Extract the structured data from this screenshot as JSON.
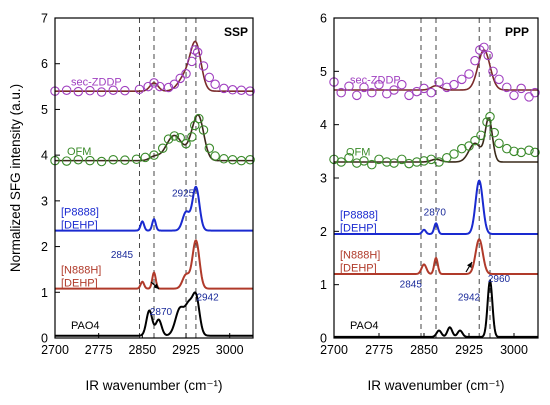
{
  "chart_data": [
    {
      "type": "line",
      "panel_label": "SSP",
      "xlabel": "IR wavenumber (cm⁻¹)",
      "ylabel": "Normalized SFG intensity (a.u.)",
      "xlim": [
        2700,
        3040
      ],
      "ylim": [
        0,
        7
      ],
      "xticks": [
        2700,
        2775,
        2850,
        2925,
        3000
      ],
      "yticks": [
        0,
        1,
        2,
        3,
        4,
        5,
        6,
        7
      ],
      "dashed_lines": [
        2845,
        2870,
        2925,
        2942
      ],
      "series": [
        {
          "name": "sec-ZDDP",
          "color": "#a040c0",
          "fit_color": "#7a2a2a",
          "baseline": 5.4,
          "peaks": [
            [
              2870,
              0.18,
              7
            ],
            [
              2925,
              0.35,
              12
            ],
            [
              2942,
              0.95,
              9
            ]
          ],
          "points": [
            [
              2700,
              5.4
            ],
            [
              2720,
              5.42
            ],
            [
              2740,
              5.39
            ],
            [
              2760,
              5.41
            ],
            [
              2780,
              5.38
            ],
            [
              2800,
              5.42
            ],
            [
              2820,
              5.41
            ],
            [
              2845,
              5.44
            ],
            [
              2860,
              5.5
            ],
            [
              2870,
              5.58
            ],
            [
              2880,
              5.5
            ],
            [
              2895,
              5.48
            ],
            [
              2905,
              5.55
            ],
            [
              2915,
              5.68
            ],
            [
              2925,
              5.78
            ],
            [
              2935,
              6.05
            ],
            [
              2940,
              6.3
            ],
            [
              2945,
              6.25
            ],
            [
              2955,
              5.95
            ],
            [
              2965,
              5.7
            ],
            [
              2975,
              5.55
            ],
            [
              2990,
              5.46
            ],
            [
              3005,
              5.43
            ],
            [
              3020,
              5.42
            ],
            [
              3035,
              5.4
            ]
          ]
        },
        {
          "name": "OFM",
          "color": "#3a8a2a",
          "fit_color": "#3a2a1a",
          "baseline": 3.88,
          "peaks": [
            [
              2870,
              0.08,
              8
            ],
            [
              2905,
              0.55,
              14
            ],
            [
              2935,
              0.25,
              8
            ],
            [
              2947,
              0.9,
              9
            ]
          ],
          "points": [
            [
              2700,
              3.88
            ],
            [
              2720,
              3.87
            ],
            [
              2740,
              3.9
            ],
            [
              2760,
              3.88
            ],
            [
              2780,
              3.86
            ],
            [
              2800,
              3.9
            ],
            [
              2820,
              3.89
            ],
            [
              2840,
              3.91
            ],
            [
              2855,
              3.95
            ],
            [
              2870,
              4.0
            ],
            [
              2885,
              4.15
            ],
            [
              2895,
              4.35
            ],
            [
              2905,
              4.42
            ],
            [
              2915,
              4.38
            ],
            [
              2925,
              4.25
            ],
            [
              2935,
              4.4
            ],
            [
              2940,
              4.65
            ],
            [
              2947,
              4.8
            ],
            [
              2955,
              4.55
            ],
            [
              2965,
              4.15
            ],
            [
              2975,
              3.98
            ],
            [
              2990,
              3.92
            ],
            [
              3005,
              3.9
            ],
            [
              3020,
              3.88
            ],
            [
              3035,
              3.9
            ]
          ]
        },
        {
          "name": "[P8888]\n[DEHP]",
          "color": "#1a2ad0",
          "baseline": 2.35,
          "peaks": [
            [
              2850,
              0.2,
              3
            ],
            [
              2870,
              0.25,
              3
            ],
            [
              2925,
              0.4,
              6
            ],
            [
              2942,
              0.95,
              6
            ]
          ]
        },
        {
          "name": "[N888H]\n[DEHP]",
          "color": "#b03a2a",
          "baseline": 1.08,
          "peaks": [
            [
              2850,
              0.15,
              3
            ],
            [
              2870,
              0.35,
              3
            ],
            [
              2925,
              0.3,
              6
            ],
            [
              2942,
              1.05,
              6
            ]
          ]
        },
        {
          "name": "PAO4",
          "color": "#000000",
          "baseline": 0.05,
          "peaks": [
            [
              2862,
              0.55,
              5
            ],
            [
              2878,
              0.35,
              5
            ],
            [
              2915,
              0.6,
              8
            ],
            [
              2930,
              0.55,
              6
            ],
            [
              2942,
              0.85,
              6
            ]
          ]
        }
      ],
      "annotations": [
        {
          "text": "2925",
          "at": [
            2920,
            3.1
          ]
        },
        {
          "text": "2845",
          "at": [
            2815,
            1.75
          ]
        },
        {
          "text": "2870",
          "at": [
            2882,
            0.5
          ]
        },
        {
          "text": "2942",
          "at": [
            2962,
            0.82
          ]
        }
      ]
    },
    {
      "type": "line",
      "panel_label": "PPP",
      "xlabel": "IR wavenumber (cm⁻¹)",
      "ylabel": "",
      "xlim": [
        2700,
        3040
      ],
      "ylim": [
        0,
        6
      ],
      "xticks": [
        2700,
        2775,
        2850,
        2925,
        3000
      ],
      "yticks": [
        0,
        1,
        2,
        3,
        4,
        5,
        6
      ],
      "dashed_lines": [
        2845,
        2870,
        2942,
        2960
      ],
      "series": [
        {
          "name": "sec-ZDDP",
          "color": "#a040c0",
          "fit_color": "#7a2a2a",
          "baseline": 4.65,
          "peaks": [
            [
              2870,
              0.08,
              8
            ],
            [
              2950,
              0.75,
              10
            ]
          ],
          "points": [
            [
              2700,
              4.8
            ],
            [
              2712,
              4.6
            ],
            [
              2725,
              4.72
            ],
            [
              2738,
              4.55
            ],
            [
              2750,
              4.7
            ],
            [
              2763,
              4.6
            ],
            [
              2775,
              4.75
            ],
            [
              2788,
              4.58
            ],
            [
              2800,
              4.65
            ],
            [
              2813,
              4.75
            ],
            [
              2825,
              4.55
            ],
            [
              2838,
              4.62
            ],
            [
              2850,
              4.68
            ],
            [
              2862,
              4.6
            ],
            [
              2875,
              4.8
            ],
            [
              2888,
              4.7
            ],
            [
              2900,
              4.75
            ],
            [
              2913,
              4.85
            ],
            [
              2925,
              4.95
            ],
            [
              2935,
              5.2
            ],
            [
              2943,
              5.4
            ],
            [
              2950,
              5.45
            ],
            [
              2957,
              5.3
            ],
            [
              2965,
              5.0
            ],
            [
              2975,
              4.85
            ],
            [
              2988,
              4.7
            ],
            [
              3000,
              4.55
            ],
            [
              3012,
              4.68
            ],
            [
              3025,
              4.52
            ],
            [
              3035,
              4.6
            ]
          ]
        },
        {
          "name": "OFM",
          "color": "#3a8a2a",
          "fit_color": "#3a2a1a",
          "baseline": 3.3,
          "peaks": [
            [
              2870,
              0.05,
              8
            ],
            [
              2935,
              0.35,
              10
            ],
            [
              2958,
              0.8,
              6
            ]
          ],
          "points": [
            [
              2700,
              3.35
            ],
            [
              2712,
              3.3
            ],
            [
              2725,
              3.38
            ],
            [
              2738,
              3.28
            ],
            [
              2750,
              3.32
            ],
            [
              2763,
              3.25
            ],
            [
              2775,
              3.35
            ],
            [
              2788,
              3.3
            ],
            [
              2800,
              3.28
            ],
            [
              2813,
              3.35
            ],
            [
              2825,
              3.27
            ],
            [
              2838,
              3.3
            ],
            [
              2850,
              3.32
            ],
            [
              2862,
              3.35
            ],
            [
              2875,
              3.3
            ],
            [
              2888,
              3.38
            ],
            [
              2900,
              3.45
            ],
            [
              2913,
              3.55
            ],
            [
              2925,
              3.6
            ],
            [
              2935,
              3.7
            ],
            [
              2945,
              3.8
            ],
            [
              2955,
              4.05
            ],
            [
              2960,
              4.15
            ],
            [
              2967,
              3.85
            ],
            [
              2975,
              3.65
            ],
            [
              2988,
              3.55
            ],
            [
              3000,
              3.5
            ],
            [
              3012,
              3.48
            ],
            [
              3025,
              3.52
            ],
            [
              3035,
              3.48
            ]
          ]
        },
        {
          "name": "[P8888]\n[DEHP]",
          "color": "#1a2ad0",
          "baseline": 1.95,
          "peaks": [
            [
              2850,
              0.08,
              3
            ],
            [
              2870,
              0.2,
              3
            ],
            [
              2942,
              1.0,
              6
            ]
          ]
        },
        {
          "name": "[N888H]\n[DEHP]",
          "color": "#b03a2a",
          "baseline": 1.2,
          "peaks": [
            [
              2850,
              0.18,
              4
            ],
            [
              2870,
              0.3,
              3
            ],
            [
              2942,
              0.65,
              6
            ]
          ]
        },
        {
          "name": "PAO4",
          "color": "#000000",
          "baseline": 0.02,
          "peaks": [
            [
              2875,
              0.12,
              4
            ],
            [
              2893,
              0.18,
              4
            ],
            [
              2910,
              0.12,
              4
            ],
            [
              2960,
              1.05,
              4
            ]
          ]
        }
      ],
      "annotations": [
        {
          "text": "2870",
          "at": [
            2868,
            2.3
          ]
        },
        {
          "text": "2845",
          "at": [
            2828,
            0.95
          ]
        },
        {
          "text": "2942",
          "at": [
            2925,
            0.7
          ]
        },
        {
          "text": "2960",
          "at": [
            2975,
            1.05
          ]
        }
      ]
    }
  ]
}
